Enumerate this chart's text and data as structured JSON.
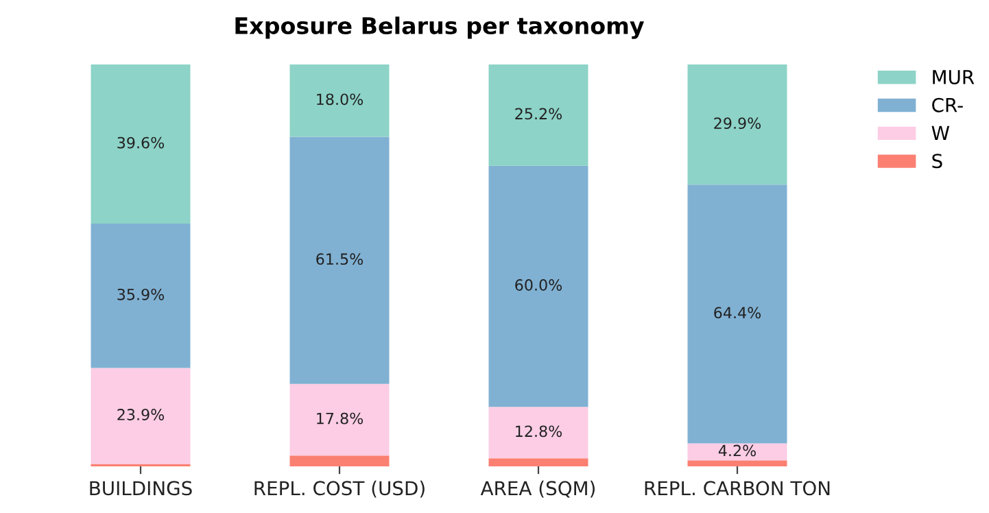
{
  "chart_data": {
    "type": "bar",
    "title": "Exposure Belarus per taxonomy",
    "stacked": true,
    "legend": "top right",
    "grid": false,
    "tick_labels": "x",
    "categories": [
      "BUILDINGS",
      "REPL. COST (USD)",
      "AREA (SQM)",
      "REPL. CARBON TON"
    ],
    "series": [
      {
        "name": "S",
        "color": "#fb8072",
        "values": [
          0.6,
          2.7,
          2.0,
          1.5
        ],
        "value_labels": [
          null,
          null,
          null,
          null
        ]
      },
      {
        "name": "W",
        "color": "#fccde5",
        "values": [
          23.9,
          17.8,
          12.8,
          4.2
        ],
        "value_labels": [
          "23.9%",
          "17.8%",
          "12.8%",
          "4.2%"
        ]
      },
      {
        "name": "CR-",
        "color": "#80b1d3",
        "values": [
          35.9,
          61.5,
          60.0,
          64.4
        ],
        "value_labels": [
          "35.9%",
          "61.5%",
          "60.0%",
          "64.4%"
        ]
      },
      {
        "name": "MUR",
        "color": "#8dd3c7",
        "values": [
          39.6,
          18.0,
          25.2,
          29.9
        ],
        "value_labels": [
          "39.6%",
          "18.0%",
          "25.2%",
          "29.9%"
        ]
      }
    ]
  }
}
